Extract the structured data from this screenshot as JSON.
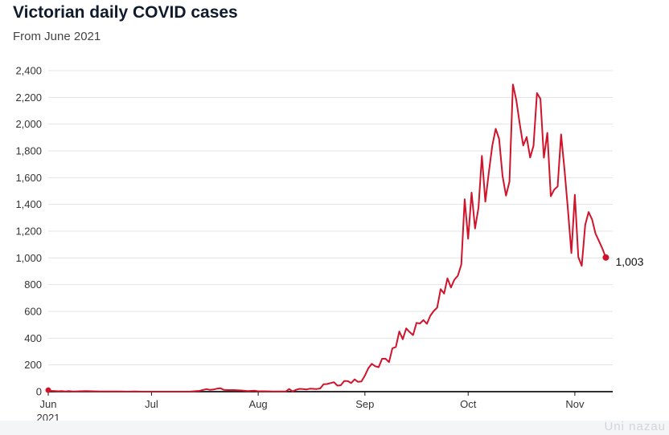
{
  "header": {
    "title": "Victorian daily COVID cases",
    "subtitle": "From June 2021"
  },
  "watermark": "Uni nazau",
  "colors": {
    "line": "#d0142c",
    "grid": "#e3e3e3",
    "axis": "#111111"
  },
  "chart_data": {
    "type": "line",
    "title": "Victorian daily COVID cases",
    "subtitle": "From June 2021",
    "xlabel": "",
    "ylabel": "",
    "ylim": [
      0,
      2400
    ],
    "yticks": [
      0,
      200,
      400,
      600,
      800,
      1000,
      1200,
      1400,
      1600,
      1800,
      2000,
      2200,
      2400
    ],
    "ytick_labels": [
      "0",
      "200",
      "400",
      "600",
      "800",
      "1,000",
      "1,200",
      "1,400",
      "1,600",
      "1,800",
      "2,000",
      "2,200",
      "2,400"
    ],
    "xlim": [
      "2021-06-01",
      "2021-11-12"
    ],
    "xticks": [
      {
        "date": "2021-06-01",
        "label": "Jun",
        "sublabel": "2021"
      },
      {
        "date": "2021-07-01",
        "label": "Jul",
        "sublabel": ""
      },
      {
        "date": "2021-08-01",
        "label": "Aug",
        "sublabel": ""
      },
      {
        "date": "2021-09-01",
        "label": "Sep",
        "sublabel": ""
      },
      {
        "date": "2021-10-01",
        "label": "Oct",
        "sublabel": ""
      },
      {
        "date": "2021-11-01",
        "label": "Nov",
        "sublabel": ""
      }
    ],
    "grid": true,
    "legend": "none",
    "start_marker": {
      "date": "2021-06-01",
      "value": 11
    },
    "end_label": {
      "date": "2021-11-10",
      "value": 1003,
      "text": "1,003"
    },
    "series": [
      {
        "x": [
          "2021-06-01",
          "2021-06-02",
          "2021-06-03",
          "2021-06-04",
          "2021-06-05",
          "2021-06-06",
          "2021-06-07",
          "2021-06-08",
          "2021-06-09",
          "2021-06-10",
          "2021-06-12",
          "2021-06-14",
          "2021-06-16",
          "2021-06-18",
          "2021-06-20",
          "2021-06-22",
          "2021-06-24",
          "2021-06-26",
          "2021-06-28",
          "2021-06-30",
          "2021-07-03",
          "2021-07-06",
          "2021-07-09",
          "2021-07-12",
          "2021-07-14",
          "2021-07-15",
          "2021-07-16",
          "2021-07-17",
          "2021-07-18",
          "2021-07-19",
          "2021-07-20",
          "2021-07-21",
          "2021-07-22",
          "2021-07-23",
          "2021-07-25",
          "2021-07-27",
          "2021-07-29",
          "2021-07-31",
          "2021-08-01",
          "2021-08-03",
          "2021-08-05",
          "2021-08-06",
          "2021-08-07",
          "2021-08-08",
          "2021-08-09",
          "2021-08-10",
          "2021-08-11",
          "2021-08-12",
          "2021-08-13",
          "2021-08-14",
          "2021-08-15",
          "2021-08-16",
          "2021-08-17",
          "2021-08-18",
          "2021-08-19",
          "2021-08-20",
          "2021-08-21",
          "2021-08-22",
          "2021-08-23",
          "2021-08-24",
          "2021-08-25",
          "2021-08-26",
          "2021-08-27",
          "2021-08-28",
          "2021-08-29",
          "2021-08-30",
          "2021-08-31",
          "2021-09-01",
          "2021-09-02",
          "2021-09-03",
          "2021-09-04",
          "2021-09-05",
          "2021-09-06",
          "2021-09-07",
          "2021-09-08",
          "2021-09-09",
          "2021-09-10",
          "2021-09-11",
          "2021-09-12",
          "2021-09-13",
          "2021-09-14",
          "2021-09-15",
          "2021-09-16",
          "2021-09-17",
          "2021-09-18",
          "2021-09-19",
          "2021-09-20",
          "2021-09-21",
          "2021-09-22",
          "2021-09-23",
          "2021-09-24",
          "2021-09-25",
          "2021-09-26",
          "2021-09-27",
          "2021-09-28",
          "2021-09-29",
          "2021-09-30",
          "2021-10-01",
          "2021-10-02",
          "2021-10-03",
          "2021-10-04",
          "2021-10-05",
          "2021-10-06",
          "2021-10-07",
          "2021-10-08",
          "2021-10-09",
          "2021-10-10",
          "2021-10-11",
          "2021-10-12",
          "2021-10-13",
          "2021-10-14",
          "2021-10-15",
          "2021-10-16",
          "2021-10-17",
          "2021-10-18",
          "2021-10-19",
          "2021-10-20",
          "2021-10-21",
          "2021-10-22",
          "2021-10-23",
          "2021-10-24",
          "2021-10-25",
          "2021-10-26",
          "2021-10-27",
          "2021-10-28",
          "2021-10-29",
          "2021-10-30",
          "2021-10-31",
          "2021-11-01",
          "2021-11-02",
          "2021-11-03",
          "2021-11-04",
          "2021-11-05",
          "2021-11-06",
          "2021-11-07",
          "2021-11-08",
          "2021-11-09",
          "2021-11-10"
        ],
        "values": [
          11,
          6,
          4,
          3,
          5,
          2,
          4,
          2,
          1,
          3,
          4,
          3,
          2,
          1,
          2,
          1,
          0,
          1,
          0,
          0,
          0,
          0,
          0,
          0,
          5,
          6,
          13,
          19,
          13,
          16,
          22,
          26,
          14,
          12,
          12,
          9,
          5,
          7,
          3,
          3,
          2,
          1,
          1,
          1,
          1,
          20,
          2,
          14,
          21,
          19,
          16,
          22,
          21,
          20,
          24,
          55,
          57,
          64,
          71,
          45,
          48,
          80,
          79,
          64,
          92,
          73,
          76,
          120,
          176,
          208,
          190,
          183,
          246,
          246,
          221,
          324,
          334,
          450,
          392,
          473,
          445,
          423,
          514,
          510,
          535,
          507,
          567,
          603,
          628,
          766,
          733,
          847,
          779,
          837,
          867,
          950,
          1438,
          1143,
          1488,
          1220,
          1377,
          1763,
          1420,
          1638,
          1838,
          1965,
          1890,
          1612,
          1466,
          1571,
          2297,
          2179,
          2001,
          1841,
          1903,
          1750,
          1838,
          2232,
          2189,
          1749,
          1935,
          1461,
          1510,
          1534,
          1923,
          1656,
          1355,
          1036,
          1471,
          1007,
          941,
          1247,
          1343,
          1288,
          1182,
          1126,
          1069,
          1003
        ]
      }
    ]
  }
}
